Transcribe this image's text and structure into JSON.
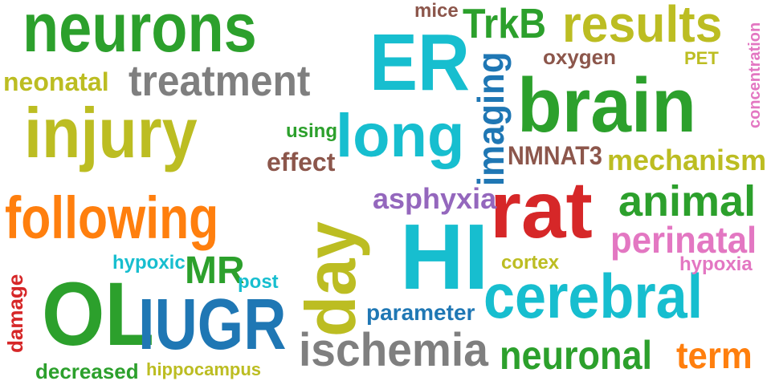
{
  "colors": {
    "green": "#2ca02c",
    "olive": "#bcbd22",
    "cyan": "#17becf",
    "blue": "#1f77b4",
    "orange": "#ff7f0e",
    "red": "#d62728",
    "purple": "#9467bd",
    "brown": "#8c564b",
    "pink": "#e377c2",
    "gray": "#7f7f7f"
  },
  "words": {
    "neurons": "neurons",
    "injury": "injury",
    "following": "following",
    "brain": "brain",
    "rat": "rat",
    "hi": "HI",
    "er": "ER",
    "ol": "OL",
    "iugr": "IUGR",
    "cerebral": "cerebral",
    "day": "day",
    "long": "long",
    "results": "results",
    "ischemia": "ischemia",
    "animal": "animal",
    "treatment": "treatment",
    "trkb": "TrkB",
    "neuronal": "neuronal",
    "perinatal": "perinatal",
    "imaging": "imaging",
    "mechanism": "mechanism",
    "asphyxia": "asphyxia",
    "term": "term",
    "nmnat3": "NMNAT3",
    "effect": "effect",
    "mr": "MR",
    "neonatal": "neonatal",
    "parameter": "parameter",
    "oxygen": "oxygen",
    "mice": "mice",
    "using": "using",
    "cortex": "cortex",
    "hypoxia": "hypoxia",
    "hypoxic": "hypoxic",
    "post": "post",
    "pet": "PET",
    "damage": "damage",
    "decreased": "decreased",
    "hippocampus": "hippocampus",
    "concentration": "concentration"
  }
}
